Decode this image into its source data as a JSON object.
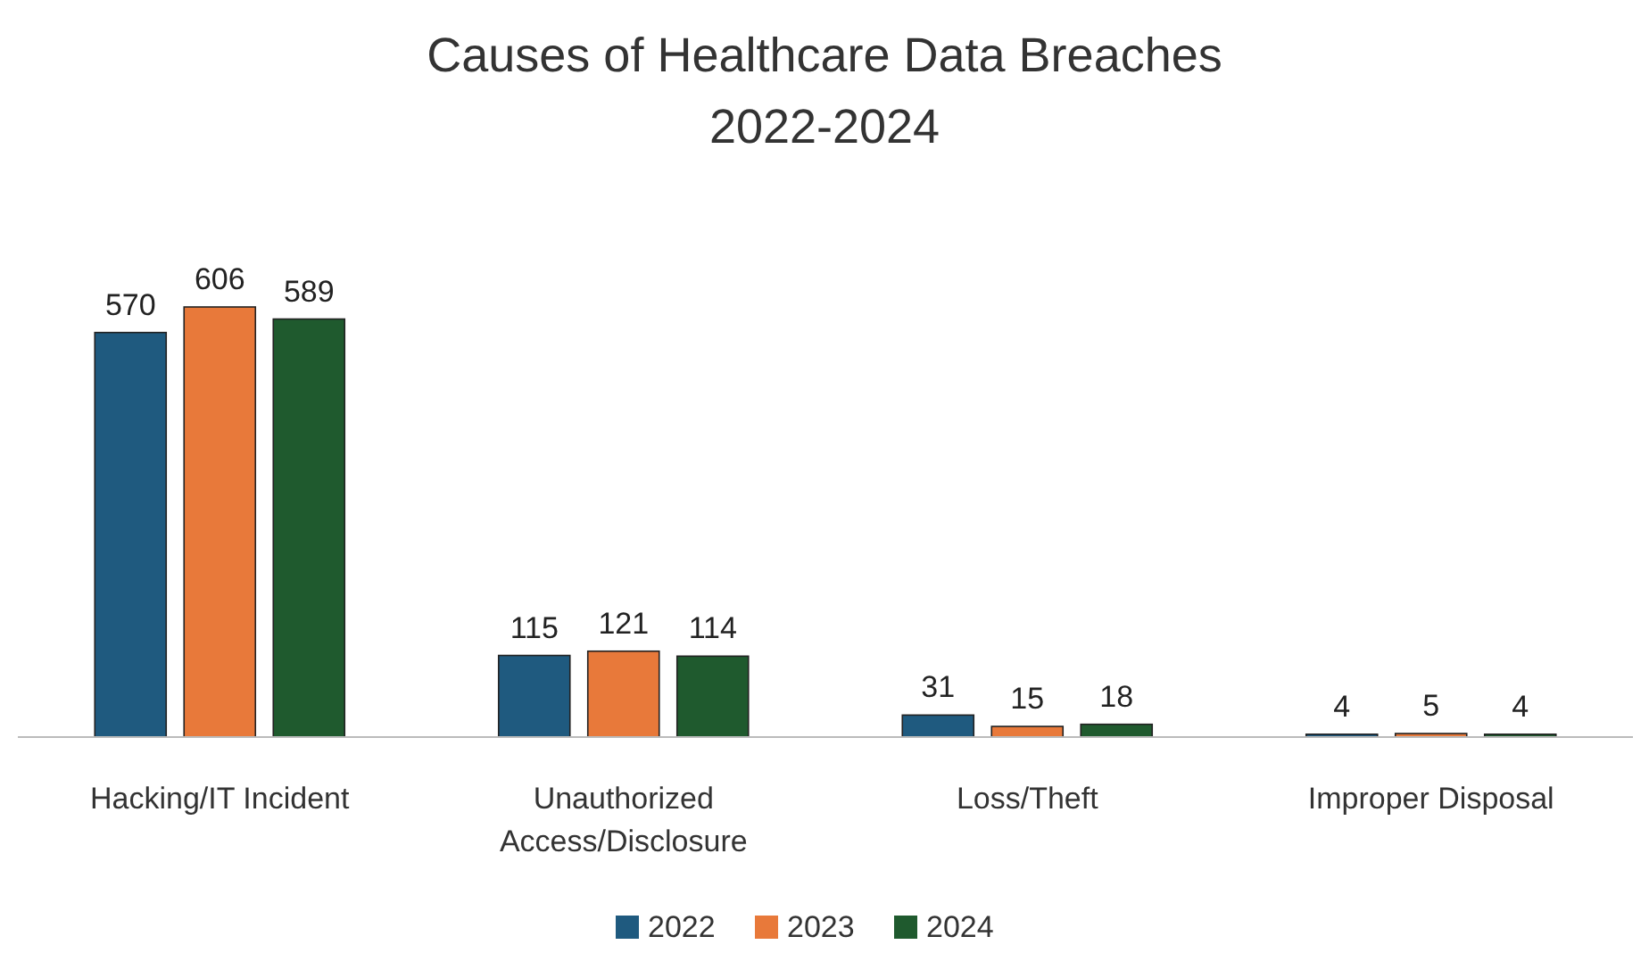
{
  "chart_data": {
    "type": "bar",
    "title": "Causes of Healthcare Data Breaches",
    "subtitle": "2022-2024",
    "categories": [
      "Hacking/IT Incident",
      "Unauthorized Access/Disclosure",
      "Loss/Theft",
      "Improper Disposal"
    ],
    "series": [
      {
        "name": "2022",
        "color": "#1f5a7f",
        "values": [
          570,
          115,
          31,
          4
        ]
      },
      {
        "name": "2023",
        "color": "#e8793a",
        "values": [
          606,
          121,
          15,
          5
        ]
      },
      {
        "name": "2024",
        "color": "#1f5a2e",
        "values": [
          589,
          114,
          18,
          4
        ]
      }
    ],
    "data_labels": true,
    "legend": "bottom"
  }
}
